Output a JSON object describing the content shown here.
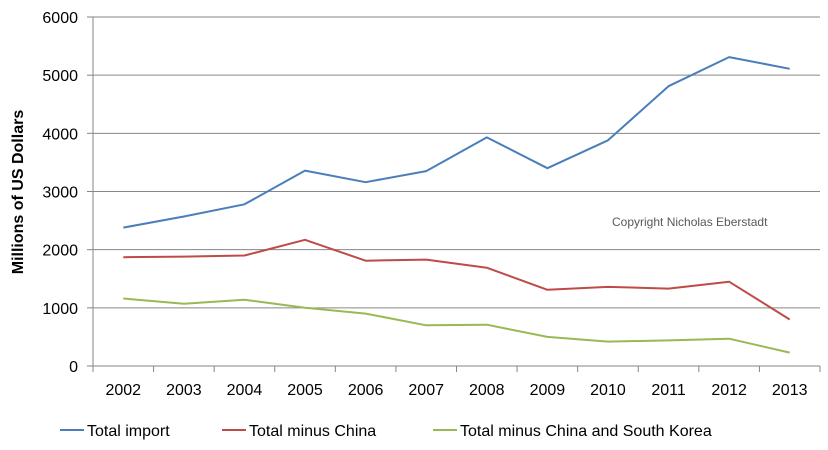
{
  "chart_data": {
    "type": "line",
    "title": "",
    "xlabel": "",
    "ylabel": "Millions of US Dollars",
    "ylim": [
      0,
      6000
    ],
    "yticks": [
      0,
      1000,
      2000,
      3000,
      4000,
      5000,
      6000
    ],
    "grid": "horizontal",
    "legend_position": "bottom",
    "annotation": "Copyright  Nicholas  Eberstadt",
    "categories": [
      "2002",
      "2003",
      "2004",
      "2005",
      "2006",
      "2007",
      "2008",
      "2009",
      "2010",
      "2011",
      "2012",
      "2013"
    ],
    "series": [
      {
        "name": "Total import",
        "color": "#4a7ebb",
        "values": [
          2380,
          2570,
          2780,
          3360,
          3160,
          3350,
          3930,
          3400,
          3880,
          4810,
          5310,
          5110
        ]
      },
      {
        "name": "Total minus China",
        "color": "#be4b48",
        "values": [
          1870,
          1880,
          1900,
          2170,
          1810,
          1830,
          1690,
          1310,
          1360,
          1330,
          1450,
          800
        ]
      },
      {
        "name": "Total minus China and South Korea",
        "color": "#98b954",
        "values": [
          1160,
          1070,
          1140,
          1000,
          900,
          700,
          710,
          500,
          420,
          440,
          470,
          230
        ]
      }
    ]
  }
}
